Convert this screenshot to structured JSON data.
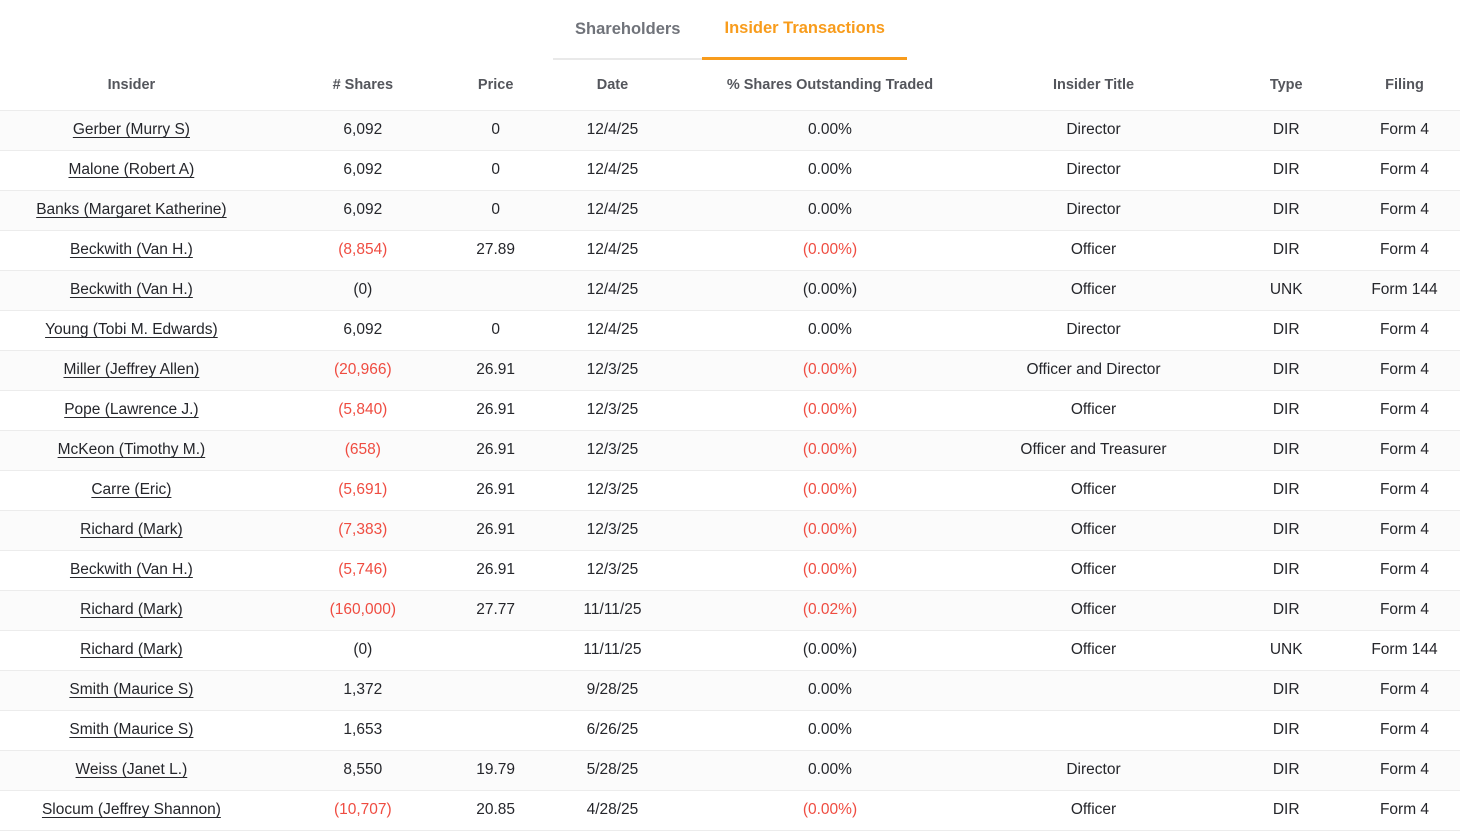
{
  "tabs": [
    {
      "label": "Shareholders",
      "active": false
    },
    {
      "label": "Insider Transactions",
      "active": true
    }
  ],
  "colors": {
    "active_tab_orange": "#f89c1c",
    "negative_red": "#ef4c41"
  },
  "table": {
    "columns": [
      "Insider",
      "# Shares",
      "Price",
      "Date",
      "% Shares Outstanding Traded",
      "Insider Title",
      "Type",
      "Filing"
    ],
    "rows": [
      {
        "insider": "Gerber (Murry S)",
        "shares": "6,092",
        "price": "0",
        "date": "12/4/25",
        "pct": "0.00%",
        "title": "Director",
        "type": "DIR",
        "filing": "Form 4",
        "negative": false
      },
      {
        "insider": "Malone (Robert A)",
        "shares": "6,092",
        "price": "0",
        "date": "12/4/25",
        "pct": "0.00%",
        "title": "Director",
        "type": "DIR",
        "filing": "Form 4",
        "negative": false
      },
      {
        "insider": "Banks (Margaret Katherine)",
        "shares": "6,092",
        "price": "0",
        "date": "12/4/25",
        "pct": "0.00%",
        "title": "Director",
        "type": "DIR",
        "filing": "Form 4",
        "negative": false
      },
      {
        "insider": "Beckwith (Van H.)",
        "shares": "(8,854)",
        "price": "27.89",
        "date": "12/4/25",
        "pct": "(0.00%)",
        "title": "Officer",
        "type": "DIR",
        "filing": "Form 4",
        "negative": true
      },
      {
        "insider": "Beckwith (Van H.)",
        "shares": "(0)",
        "price": "",
        "date": "12/4/25",
        "pct": "(0.00%)",
        "title": "Officer",
        "type": "UNK",
        "filing": "Form 144",
        "negative": false
      },
      {
        "insider": "Young (Tobi M. Edwards)",
        "shares": "6,092",
        "price": "0",
        "date": "12/4/25",
        "pct": "0.00%",
        "title": "Director",
        "type": "DIR",
        "filing": "Form 4",
        "negative": false
      },
      {
        "insider": "Miller (Jeffrey Allen)",
        "shares": "(20,966)",
        "price": "26.91",
        "date": "12/3/25",
        "pct": "(0.00%)",
        "title": "Officer and Director",
        "type": "DIR",
        "filing": "Form 4",
        "negative": true
      },
      {
        "insider": "Pope (Lawrence J.)",
        "shares": "(5,840)",
        "price": "26.91",
        "date": "12/3/25",
        "pct": "(0.00%)",
        "title": "Officer",
        "type": "DIR",
        "filing": "Form 4",
        "negative": true
      },
      {
        "insider": "McKeon (Timothy M.)",
        "shares": "(658)",
        "price": "26.91",
        "date": "12/3/25",
        "pct": "(0.00%)",
        "title": "Officer and Treasurer",
        "type": "DIR",
        "filing": "Form 4",
        "negative": true
      },
      {
        "insider": "Carre (Eric)",
        "shares": "(5,691)",
        "price": "26.91",
        "date": "12/3/25",
        "pct": "(0.00%)",
        "title": "Officer",
        "type": "DIR",
        "filing": "Form 4",
        "negative": true
      },
      {
        "insider": "Richard (Mark)",
        "shares": "(7,383)",
        "price": "26.91",
        "date": "12/3/25",
        "pct": "(0.00%)",
        "title": "Officer",
        "type": "DIR",
        "filing": "Form 4",
        "negative": true
      },
      {
        "insider": "Beckwith (Van H.)",
        "shares": "(5,746)",
        "price": "26.91",
        "date": "12/3/25",
        "pct": "(0.00%)",
        "title": "Officer",
        "type": "DIR",
        "filing": "Form 4",
        "negative": true
      },
      {
        "insider": "Richard (Mark)",
        "shares": "(160,000)",
        "price": "27.77",
        "date": "11/11/25",
        "pct": "(0.02%)",
        "title": "Officer",
        "type": "DIR",
        "filing": "Form 4",
        "negative": true
      },
      {
        "insider": "Richard (Mark)",
        "shares": "(0)",
        "price": "",
        "date": "11/11/25",
        "pct": "(0.00%)",
        "title": "Officer",
        "type": "UNK",
        "filing": "Form 144",
        "negative": false
      },
      {
        "insider": "Smith (Maurice S)",
        "shares": "1,372",
        "price": "",
        "date": "9/28/25",
        "pct": "0.00%",
        "title": "",
        "type": "DIR",
        "filing": "Form 4",
        "negative": false
      },
      {
        "insider": "Smith (Maurice S)",
        "shares": "1,653",
        "price": "",
        "date": "6/26/25",
        "pct": "0.00%",
        "title": "",
        "type": "DIR",
        "filing": "Form 4",
        "negative": false
      },
      {
        "insider": "Weiss (Janet L.)",
        "shares": "8,550",
        "price": "19.79",
        "date": "5/28/25",
        "pct": "0.00%",
        "title": "Director",
        "type": "DIR",
        "filing": "Form 4",
        "negative": false
      },
      {
        "insider": "Slocum (Jeffrey Shannon)",
        "shares": "(10,707)",
        "price": "20.85",
        "date": "4/28/25",
        "pct": "(0.00%)",
        "title": "Officer",
        "type": "DIR",
        "filing": "Form 4",
        "negative": true
      }
    ]
  }
}
